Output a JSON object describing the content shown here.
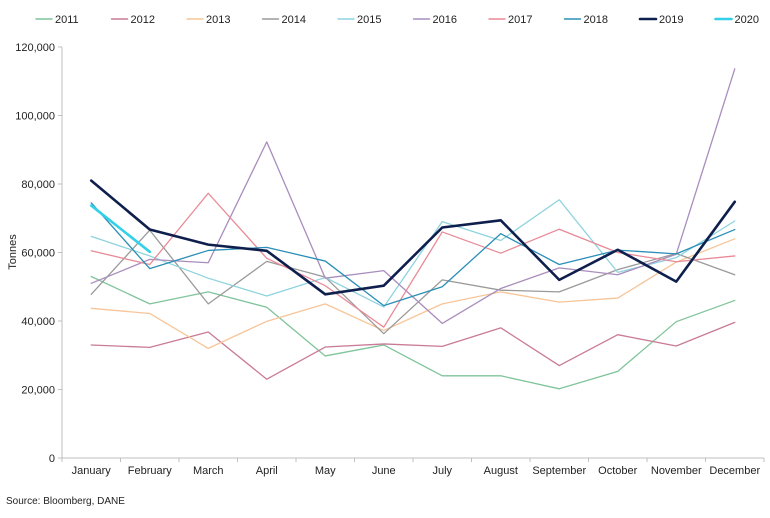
{
  "chart_data": {
    "type": "line",
    "title": "",
    "xlabel": "",
    "ylabel": "Tonnes",
    "ylim": [
      0,
      120000
    ],
    "yticks": [
      0,
      20000,
      40000,
      60000,
      80000,
      100000,
      120000
    ],
    "ytick_labels": [
      "0",
      "20,000",
      "40,000",
      "60,000",
      "80,000",
      "100,000",
      "120,000"
    ],
    "grid": "none",
    "legend_position": "top",
    "categories": [
      "January",
      "February",
      "March",
      "April",
      "May",
      "June",
      "July",
      "August",
      "September",
      "October",
      "November",
      "December"
    ],
    "series": [
      {
        "name": "2011",
        "color": "#7fc49a",
        "bold": false,
        "values": [
          53000,
          45000,
          48500,
          44000,
          29800,
          33000,
          24000,
          24000,
          20200,
          25300,
          39800,
          46000
        ]
      },
      {
        "name": "2012",
        "color": "#c97a96",
        "bold": false,
        "values": [
          33000,
          32300,
          36800,
          23000,
          32400,
          33300,
          32600,
          38000,
          27000,
          36000,
          32700,
          39600
        ]
      },
      {
        "name": "2013",
        "color": "#f7c598",
        "bold": false,
        "values": [
          43700,
          42200,
          32000,
          39900,
          45000,
          37200,
          45000,
          48500,
          45500,
          46700,
          57200,
          64000
        ]
      },
      {
        "name": "2014",
        "color": "#9a9a9a",
        "bold": false,
        "values": [
          47800,
          66500,
          45000,
          57400,
          52800,
          36300,
          52000,
          49000,
          48500,
          55000,
          59700,
          53500
        ]
      },
      {
        "name": "2015",
        "color": "#8ed3de",
        "bold": false,
        "values": [
          64700,
          59000,
          52500,
          47300,
          52700,
          44100,
          69000,
          63500,
          75400,
          54200,
          58500,
          69200
        ]
      },
      {
        "name": "2016",
        "color": "#a98dbd",
        "bold": false,
        "values": [
          51000,
          58000,
          57000,
          92300,
          52500,
          54700,
          39300,
          49500,
          55500,
          53500,
          59500,
          113600
        ]
      },
      {
        "name": "2017",
        "color": "#e88a96",
        "bold": false,
        "values": [
          60500,
          56500,
          77300,
          58300,
          50300,
          38200,
          66000,
          59800,
          66800,
          60000,
          57300,
          59000
        ]
      },
      {
        "name": "2018",
        "color": "#2b8fb6",
        "bold": false,
        "values": [
          74500,
          55300,
          60600,
          61500,
          57500,
          44500,
          50000,
          65500,
          56500,
          60700,
          59600,
          66700
        ]
      },
      {
        "name": "2019",
        "color": "#0f1f4d",
        "bold": true,
        "values": [
          81000,
          66700,
          62300,
          60500,
          47800,
          50300,
          67300,
          69400,
          52000,
          60800,
          51500,
          74800
        ]
      },
      {
        "name": "2020",
        "color": "#33d0e8",
        "bold": true,
        "values": [
          73700,
          60200,
          null,
          null,
          null,
          null,
          null,
          null,
          null,
          null,
          null,
          null
        ]
      }
    ]
  },
  "source_text": "Source: Bloomberg, DANE"
}
